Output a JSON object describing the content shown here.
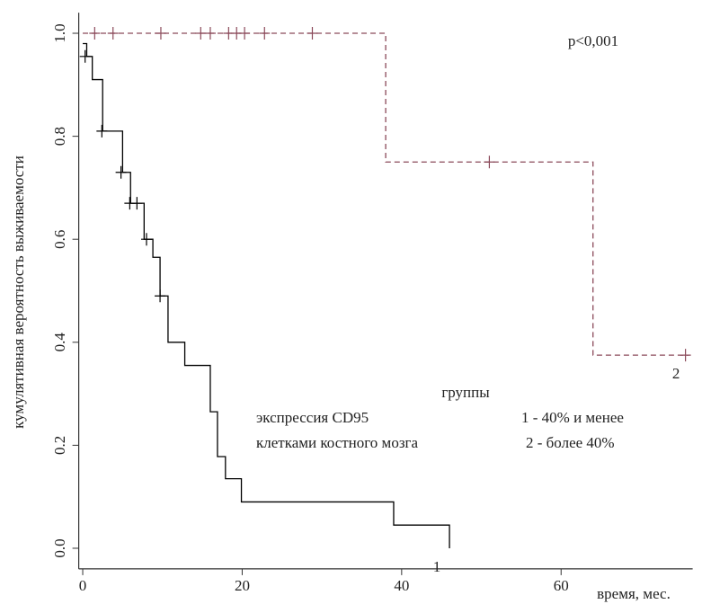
{
  "chart_data": {
    "type": "step",
    "y_label": "кумулятивная вероятность выживаемости",
    "x_label": "время, мес.",
    "annotation": "p<0,001",
    "legend_title": "группы",
    "legend_lines": [
      [
        "экспрессия CD95",
        "1 - 40% и менее"
      ],
      [
        "клетками костного мозга",
        "2 - более 40%"
      ]
    ],
    "xlim": [
      -0.5,
      76.5
    ],
    "ylim": [
      -0.04,
      1.04
    ],
    "xticks": [
      0,
      20,
      40,
      60
    ],
    "yticks": [
      {
        "value": 0,
        "label": "0.0"
      },
      0.2,
      0.4,
      0.6,
      0.8,
      {
        "value": 1,
        "label": "1.0"
      }
    ],
    "series": [
      {
        "name": "1",
        "color": "#000000",
        "dashed": false,
        "x": [
          0,
          0.5,
          1.2,
          2.5,
          5,
          6,
          7.7,
          8.8,
          9.7,
          10.7,
          12.8,
          16,
          16.9,
          17.9,
          19.9,
          39,
          46
        ],
        "values": [
          0.98,
          0.955,
          0.91,
          0.81,
          0.73,
          0.67,
          0.6,
          0.565,
          0.49,
          0.4,
          0.355,
          0.265,
          0.178,
          0.135,
          0.09,
          0.045,
          0
        ],
        "censor_x": [
          0.3,
          2.4,
          4.8,
          5.9,
          6.8,
          8.0,
          9.7
        ],
        "censor_values": [
          0.955,
          0.81,
          0.73,
          0.67,
          0.67,
          0.6,
          0.49
        ]
      },
      {
        "name": "2",
        "color": "#8b4a5a",
        "dashed": true,
        "x": [
          0,
          38,
          64,
          76
        ],
        "values": [
          1,
          0.75,
          0.375,
          0.375
        ],
        "censor_x": [
          1.5,
          3.8,
          9.8,
          14.8,
          16.0,
          18.3,
          19.3,
          20.3,
          22.8,
          28.8,
          51,
          75.6
        ],
        "censor_values": [
          1,
          1,
          1,
          1,
          1,
          1,
          1,
          1,
          1,
          1,
          0.75,
          0.375
        ]
      }
    ]
  }
}
